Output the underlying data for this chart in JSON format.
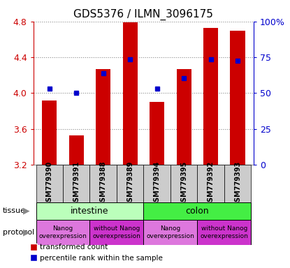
{
  "title": "GDS5376 / ILMN_3096175",
  "samples": [
    "GSM779390",
    "GSM779391",
    "GSM779388",
    "GSM779389",
    "GSM779394",
    "GSM779395",
    "GSM779392",
    "GSM779393"
  ],
  "bar_values": [
    3.92,
    3.53,
    4.27,
    4.79,
    3.9,
    4.27,
    4.73,
    4.7
  ],
  "bar_base": 3.2,
  "blue_values": [
    4.05,
    4.0,
    4.22,
    4.38,
    4.05,
    4.17,
    4.38,
    4.36
  ],
  "bar_color": "#cc0000",
  "blue_color": "#0000cc",
  "ylim_min": 3.2,
  "ylim_max": 4.8,
  "yticks_left": [
    3.2,
    3.6,
    4.0,
    4.4,
    4.8
  ],
  "yticks_right": [
    0,
    25,
    50,
    75,
    100
  ],
  "yticks_right_labels": [
    "0",
    "25",
    "50",
    "75",
    "100%"
  ],
  "tissue_intestine_cols": [
    0,
    1,
    2,
    3
  ],
  "tissue_colon_cols": [
    4,
    5,
    6,
    7
  ],
  "tissue_intestine_label": "intestine",
  "tissue_colon_label": "colon",
  "tissue_intestine_color": "#bbffbb",
  "tissue_colon_color": "#44ee44",
  "protocol_nanog1_cols": [
    0,
    1
  ],
  "protocol_without1_cols": [
    2,
    3
  ],
  "protocol_nanog2_cols": [
    4,
    5
  ],
  "protocol_without2_cols": [
    6,
    7
  ],
  "protocol_nanog_label": "Nanog\noverexpression",
  "protocol_without_label": "without Nanog\noverexpression",
  "protocol_nanog_color": "#dd77dd",
  "protocol_without_color": "#cc33cc",
  "legend_red_label": "transformed count",
  "legend_blue_label": "percentile rank within the sample",
  "grid_color": "#888888",
  "bar_width": 0.55,
  "sample_bg_color": "#cccccc",
  "left_label_color": "#888888"
}
